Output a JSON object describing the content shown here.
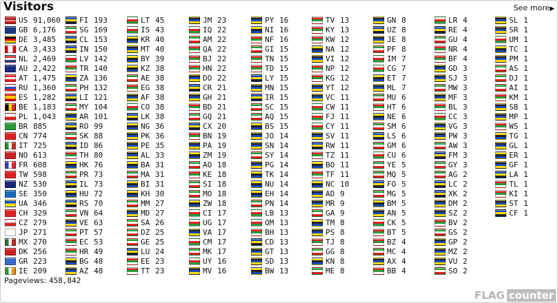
{
  "header": {
    "title": "Visitors",
    "see_more": "See more",
    "see_more_icon": "triangle-right"
  },
  "columns": [
    [
      [
        "US",
        "91,060"
      ],
      [
        "GB",
        "6,176"
      ],
      [
        "DE",
        "3,485"
      ],
      [
        "CA",
        "3,433"
      ],
      [
        "NL",
        "2,469"
      ],
      [
        "AU",
        "2,422"
      ],
      [
        "AT",
        "1,475"
      ],
      [
        "RU",
        "1,360"
      ],
      [
        "ES",
        "1,282"
      ],
      [
        "BE",
        "1,183"
      ],
      [
        "PL",
        "1,043"
      ],
      [
        "BR",
        "885"
      ],
      [
        "CN",
        "774"
      ],
      [
        "IT",
        "725"
      ],
      [
        "NO",
        "613"
      ],
      [
        "FR",
        "608"
      ],
      [
        "TW",
        "598"
      ],
      [
        "NZ",
        "530"
      ],
      [
        "SE",
        "350"
      ],
      [
        "UA",
        "346"
      ],
      [
        "CH",
        "329"
      ],
      [
        "CZ",
        "279"
      ],
      [
        "JP",
        "271"
      ],
      [
        "MX",
        "270"
      ],
      [
        "DK",
        "256"
      ],
      [
        "GR",
        "223"
      ],
      [
        "IE",
        "209"
      ]
    ],
    [
      [
        "FI",
        "193"
      ],
      [
        "SG",
        "169"
      ],
      [
        "CL",
        "153"
      ],
      [
        "IN",
        "150"
      ],
      [
        "LV",
        "142"
      ],
      [
        "TR",
        "140"
      ],
      [
        "ZA",
        "136"
      ],
      [
        "PH",
        "132"
      ],
      [
        "LI",
        "121"
      ],
      [
        "MY",
        "104"
      ],
      [
        "AR",
        "101"
      ],
      [
        "RO",
        "99"
      ],
      [
        "SK",
        "88"
      ],
      [
        "ID",
        "86"
      ],
      [
        "TH",
        "80"
      ],
      [
        "HK",
        "76"
      ],
      [
        "PR",
        "73"
      ],
      [
        "IL",
        "73"
      ],
      [
        "HU",
        "72"
      ],
      [
        "RS",
        "70"
      ],
      [
        "VN",
        "64"
      ],
      [
        "VE",
        "63"
      ],
      [
        "PT",
        "57"
      ],
      [
        "EC",
        "53"
      ],
      [
        "HR",
        "49"
      ],
      [
        "BG",
        "48"
      ],
      [
        "AZ",
        "48"
      ]
    ],
    [
      [
        "LT",
        "45"
      ],
      [
        "IS",
        "43"
      ],
      [
        "KR",
        "40"
      ],
      [
        "MT",
        "40"
      ],
      [
        "BY",
        "39"
      ],
      [
        "KZ",
        "38"
      ],
      [
        "AE",
        "38"
      ],
      [
        "EG",
        "38"
      ],
      [
        "AF",
        "38"
      ],
      [
        "CO",
        "38"
      ],
      [
        "LK",
        "38"
      ],
      [
        "NG",
        "36"
      ],
      [
        "PK",
        "36"
      ],
      [
        "PE",
        "35"
      ],
      [
        "AL",
        "33"
      ],
      [
        "BA",
        "31"
      ],
      [
        "MA",
        "31"
      ],
      [
        "BI",
        "31"
      ],
      [
        "KH",
        "30"
      ],
      [
        "MM",
        "27"
      ],
      [
        "MD",
        "27"
      ],
      [
        "SA",
        "26"
      ],
      [
        "DZ",
        "25"
      ],
      [
        "GE",
        "25"
      ],
      [
        "LU",
        "24"
      ],
      [
        "EE",
        "23"
      ],
      [
        "TT",
        "23"
      ]
    ],
    [
      [
        "JM",
        "23"
      ],
      [
        "IQ",
        "22"
      ],
      [
        "AM",
        "22"
      ],
      [
        "QA",
        "22"
      ],
      [
        "BJ",
        "22"
      ],
      [
        "HN",
        "22"
      ],
      [
        "DO",
        "22"
      ],
      [
        "CR",
        "21"
      ],
      [
        "GH",
        "21"
      ],
      [
        "BD",
        "21"
      ],
      [
        "GQ",
        "21"
      ],
      [
        "CX",
        "20"
      ],
      [
        "BN",
        "19"
      ],
      [
        "PA",
        "19"
      ],
      [
        "ZM",
        "19"
      ],
      [
        "AO",
        "18"
      ],
      [
        "KE",
        "18"
      ],
      [
        "SI",
        "18"
      ],
      [
        "MO",
        "18"
      ],
      [
        "ZW",
        "18"
      ],
      [
        "CI",
        "17"
      ],
      [
        "UG",
        "17"
      ],
      [
        "VA",
        "17"
      ],
      [
        "CM",
        "17"
      ],
      [
        "MK",
        "17"
      ],
      [
        "UY",
        "16"
      ],
      [
        "MV",
        "16"
      ]
    ],
    [
      [
        "PY",
        "16"
      ],
      [
        "NI",
        "16"
      ],
      [
        "NF",
        "16"
      ],
      [
        "GI",
        "15"
      ],
      [
        "TN",
        "15"
      ],
      [
        "TD",
        "15"
      ],
      [
        "LY",
        "15"
      ],
      [
        "MN",
        "15"
      ],
      [
        "IR",
        "15"
      ],
      [
        "SC",
        "15"
      ],
      [
        "AQ",
        "15"
      ],
      [
        "BS",
        "15"
      ],
      [
        "JO",
        "14"
      ],
      [
        "SN",
        "14"
      ],
      [
        "SY",
        "14"
      ],
      [
        "PG",
        "14"
      ],
      [
        "TK",
        "14"
      ],
      [
        "NU",
        "14"
      ],
      [
        "EH",
        "14"
      ],
      [
        "PN",
        "14"
      ],
      [
        "LB",
        "13"
      ],
      [
        "OM",
        "13"
      ],
      [
        "BH",
        "13"
      ],
      [
        "CD",
        "13"
      ],
      [
        "GT",
        "13"
      ],
      [
        "SD",
        "13"
      ],
      [
        "BW",
        "13"
      ]
    ],
    [
      [
        "TV",
        "13"
      ],
      [
        "KY",
        "13"
      ],
      [
        "KW",
        "12"
      ],
      [
        "NA",
        "12"
      ],
      [
        "VI",
        "12"
      ],
      [
        "NP",
        "12"
      ],
      [
        "KG",
        "12"
      ],
      [
        "YT",
        "12"
      ],
      [
        "VC",
        "11"
      ],
      [
        "CW",
        "11"
      ],
      [
        "FJ",
        "11"
      ],
      [
        "CY",
        "11"
      ],
      [
        "SV",
        "11"
      ],
      [
        "RW",
        "11"
      ],
      [
        "TZ",
        "11"
      ],
      [
        "BO",
        "11"
      ],
      [
        "TF",
        "11"
      ],
      [
        "NC",
        "10"
      ],
      [
        "AD",
        "9"
      ],
      [
        "MR",
        "9"
      ],
      [
        "GA",
        "9"
      ],
      [
        "TM",
        "8"
      ],
      [
        "PS",
        "8"
      ],
      [
        "TJ",
        "8"
      ],
      [
        "GG",
        "8"
      ],
      [
        "KN",
        "8"
      ],
      [
        "ME",
        "8"
      ]
    ],
    [
      [
        "GN",
        "8"
      ],
      [
        "UZ",
        "8"
      ],
      [
        "JE",
        "8"
      ],
      [
        "PF",
        "8"
      ],
      [
        "IM",
        "7"
      ],
      [
        "CG",
        "7"
      ],
      [
        "ET",
        "7"
      ],
      [
        "ML",
        "7"
      ],
      [
        "MU",
        "6"
      ],
      [
        "HT",
        "6"
      ],
      [
        "NE",
        "6"
      ],
      [
        "SM",
        "6"
      ],
      [
        "LS",
        "6"
      ],
      [
        "GM",
        "6"
      ],
      [
        "CU",
        "6"
      ],
      [
        "YE",
        "5"
      ],
      [
        "MQ",
        "5"
      ],
      [
        "FO",
        "5"
      ],
      [
        "MG",
        "5"
      ],
      [
        "BM",
        "5"
      ],
      [
        "AN",
        "5"
      ],
      [
        "CK",
        "5"
      ],
      [
        "BT",
        "5"
      ],
      [
        "BZ",
        "4"
      ],
      [
        "MC",
        "4"
      ],
      [
        "AX",
        "4"
      ],
      [
        "BB",
        "4"
      ]
    ],
    [
      [
        "LR",
        "4"
      ],
      [
        "RE",
        "4"
      ],
      [
        "GU",
        "4"
      ],
      [
        "NR",
        "4"
      ],
      [
        "BF",
        "4"
      ],
      [
        "GD",
        "3"
      ],
      [
        "SJ",
        "3"
      ],
      [
        "MW",
        "3"
      ],
      [
        "MF",
        "3"
      ],
      [
        "BL",
        "3"
      ],
      [
        "CC",
        "3"
      ],
      [
        "VG",
        "3"
      ],
      [
        "PW",
        "3"
      ],
      [
        "AW",
        "3"
      ],
      [
        "FM",
        "3"
      ],
      [
        "GY",
        "3"
      ],
      [
        "AG",
        "2"
      ],
      [
        "LC",
        "2"
      ],
      [
        "XK",
        "2"
      ],
      [
        "DM",
        "2"
      ],
      [
        "SZ",
        "2"
      ],
      [
        "BV",
        "2"
      ],
      [
        "GS",
        "2"
      ],
      [
        "GP",
        "2"
      ],
      [
        "MZ",
        "2"
      ],
      [
        "VU",
        "2"
      ],
      [
        "SO",
        "2"
      ]
    ],
    [
      [
        "SL",
        "1"
      ],
      [
        "SR",
        "1"
      ],
      [
        "UM",
        "1"
      ],
      [
        "TC",
        "1"
      ],
      [
        "PM",
        "1"
      ],
      [
        "AS",
        "1"
      ],
      [
        "DJ",
        "1"
      ],
      [
        "AI",
        "1"
      ],
      [
        "KM",
        "1"
      ],
      [
        "SB",
        "1"
      ],
      [
        "MP",
        "1"
      ],
      [
        "WS",
        "1"
      ],
      [
        "TG",
        "1"
      ],
      [
        "GL",
        "1"
      ],
      [
        "ER",
        "1"
      ],
      [
        "GF",
        "1"
      ],
      [
        "LA",
        "1"
      ],
      [
        "TL",
        "1"
      ],
      [
        "KI",
        "1"
      ],
      [
        "ST",
        "1"
      ],
      [
        "CF",
        "1"
      ]
    ]
  ],
  "footer": {
    "pageviews_label": "Pageviews:",
    "pageviews_value": "458,842",
    "logo_flag": "FLAG",
    "logo_counter": "counter"
  }
}
